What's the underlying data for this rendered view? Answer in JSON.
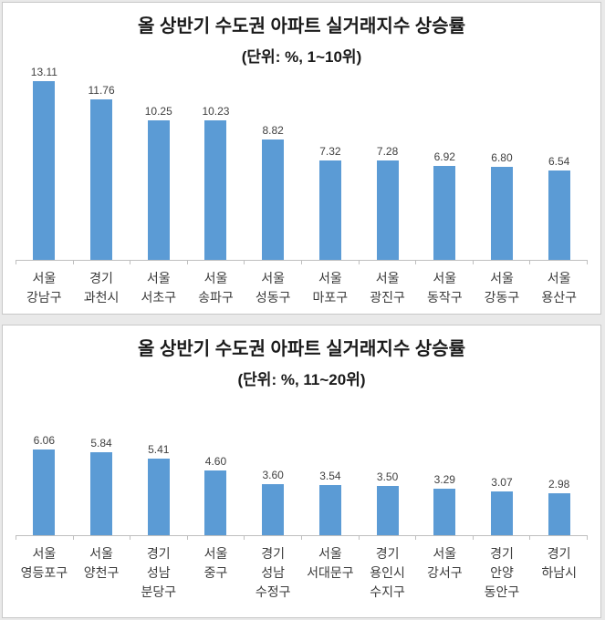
{
  "colors": {
    "bar": "#5B9BD5",
    "panel_border": "#c8c8c8",
    "axis": "#bfbfbf",
    "title": "#1a1a1a",
    "label": "#3b3b3b",
    "background": "#e9e9e9",
    "panel_background": "#ffffff"
  },
  "chart_data": [
    {
      "type": "bar",
      "title": "올 상반기 수도권 아파트 실거래지수 상승률",
      "subtitle": "(단위: %, 1~10위)",
      "unit": "%",
      "categories": [
        "서울\n강남구",
        "경기\n과천시",
        "서울\n서초구",
        "서울\n송파구",
        "서울\n성동구",
        "서울\n마포구",
        "서울\n광진구",
        "서울\n동작구",
        "서울\n강동구",
        "서울\n용산구"
      ],
      "values": [
        13.11,
        11.76,
        10.25,
        10.23,
        8.82,
        7.32,
        7.28,
        6.92,
        6.8,
        6.54
      ],
      "ylim": [
        0,
        14
      ],
      "grid": false,
      "legend": false,
      "value_labels": true
    },
    {
      "type": "bar",
      "title": "올 상반기 수도권 아파트 실거래지수 상승률",
      "subtitle": "(단위: %, 11~20위)",
      "unit": "%",
      "categories": [
        "서울\n영등포구",
        "서울\n양천구",
        "경기\n성남\n분당구",
        "서울\n중구",
        "경기\n성남\n수정구",
        "서울\n서대문구",
        "경기\n용인시\n수지구",
        "서울\n강서구",
        "경기\n안양\n동안구",
        "경기\n하남시"
      ],
      "values": [
        6.06,
        5.84,
        5.41,
        4.6,
        3.6,
        3.54,
        3.5,
        3.29,
        3.07,
        2.98
      ],
      "ylim": [
        0,
        6.5
      ],
      "grid": false,
      "legend": false,
      "value_labels": true
    }
  ]
}
